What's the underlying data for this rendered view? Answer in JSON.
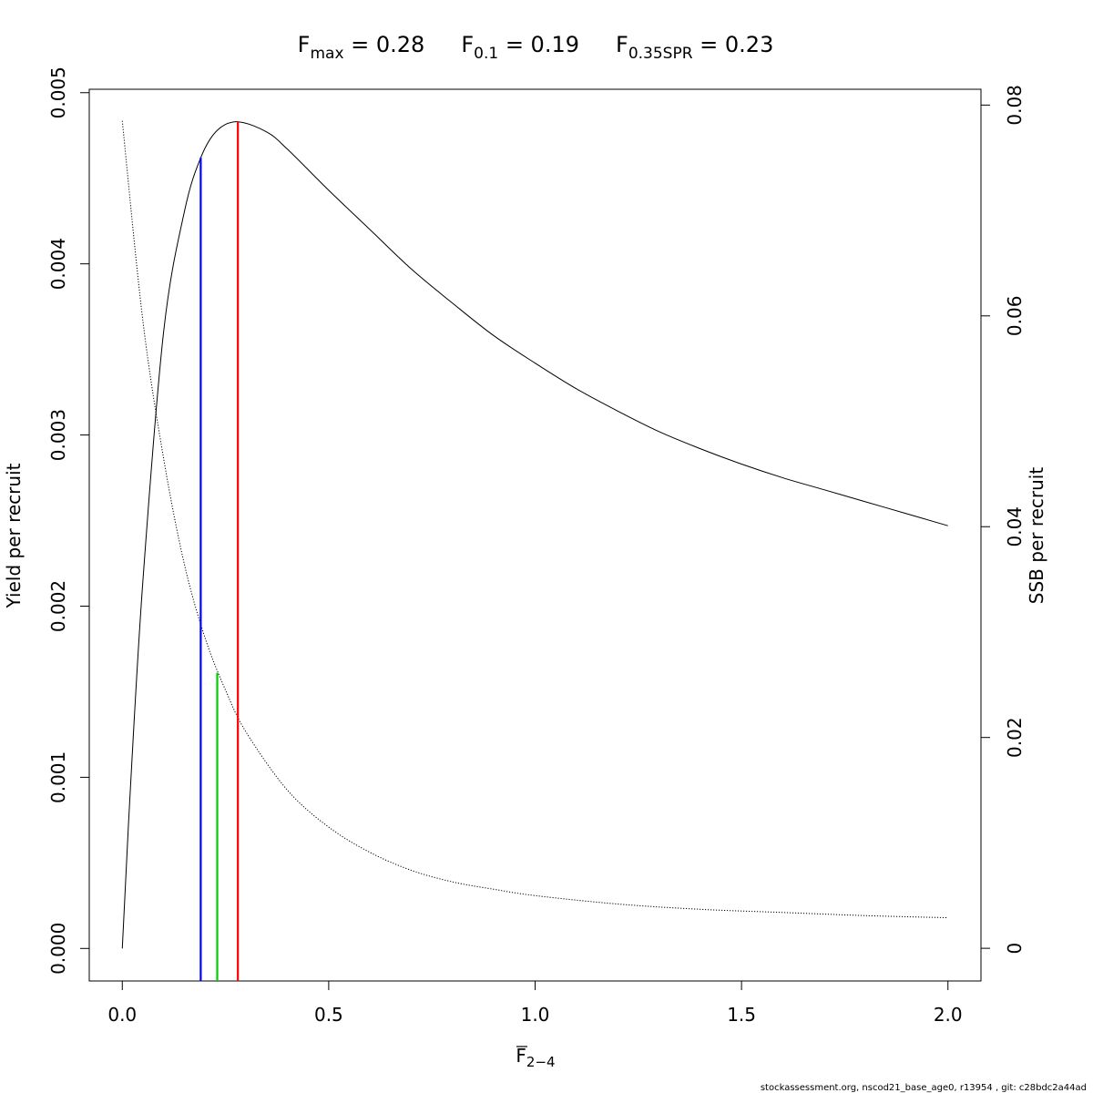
{
  "title": {
    "fmax_symbol": "F",
    "fmax_sub": "max",
    "fmax_value": " = 0.28",
    "f01_symbol": "F",
    "f01_sub": "0.1",
    "f01_value": " = 0.19",
    "fspr_symbol": "F",
    "fspr_sub": "0.35SPR",
    "fspr_value": " = 0.23"
  },
  "footer": "stockassessment.org, nscod21_base_age0, r13954 , git: c28bdc2a44ad",
  "chart_data": {
    "type": "line",
    "xlabel": {
      "symbol": "F",
      "sub": "2−4"
    },
    "ylabel_left": "Yield per recruit",
    "ylabel_right": "SSB per recruit",
    "xlim": [
      -0.08,
      2.08
    ],
    "xticks": [
      "0.0",
      "0.5",
      "1.0",
      "1.5",
      "2.0"
    ],
    "ylim_left": [
      -0.00019,
      0.00502
    ],
    "yticks_left": [
      "0.000",
      "0.001",
      "0.002",
      "0.003",
      "0.004",
      "0.005"
    ],
    "ylim_right": [
      -0.0031,
      0.0815
    ],
    "yticks_right": [
      "0",
      "0.02",
      "0.04",
      "0.06",
      "0.08"
    ],
    "grid": false,
    "series": [
      {
        "axis": "left",
        "style": "solid",
        "color": "#000000",
        "x": [
          0,
          0.02,
          0.05,
          0.1,
          0.15,
          0.19,
          0.23,
          0.28,
          0.35,
          0.4,
          0.5,
          0.6,
          0.7,
          0.8,
          0.9,
          1.0,
          1.1,
          1.2,
          1.3,
          1.4,
          1.5,
          1.6,
          1.7,
          1.8,
          1.9,
          2.0
        ],
        "y": [
          0,
          0.00095,
          0.00215,
          0.0036,
          0.0043,
          0.00462,
          0.00478,
          0.00483,
          0.00477,
          0.00467,
          0.00443,
          0.0042,
          0.00397,
          0.00377,
          0.00358,
          0.00342,
          0.00327,
          0.00314,
          0.00302,
          0.00292,
          0.00283,
          0.00275,
          0.00268,
          0.00261,
          0.00254,
          0.00247
        ]
      },
      {
        "axis": "right",
        "style": "dotted",
        "color": "#000000",
        "x": [
          0,
          0.05,
          0.1,
          0.15,
          0.2,
          0.25,
          0.3,
          0.4,
          0.5,
          0.6,
          0.7,
          0.8,
          0.9,
          1.0,
          1.2,
          1.4,
          1.6,
          1.8,
          2.0
        ],
        "y": [
          0.0785,
          0.0595,
          0.0465,
          0.0365,
          0.0295,
          0.0245,
          0.0205,
          0.015,
          0.0115,
          0.0091,
          0.0074,
          0.0063,
          0.0056,
          0.005,
          0.0042,
          0.0037,
          0.0034,
          0.0031,
          0.0029
        ]
      }
    ],
    "reference_lines": [
      {
        "name": "F0.1",
        "x": 0.19,
        "y_top": 0.00462,
        "color": "#0000ff"
      },
      {
        "name": "F0.35SPR",
        "x": 0.23,
        "y_top": 0.00161,
        "color": "#00cc00"
      },
      {
        "name": "Fmax",
        "x": 0.28,
        "y_top": 0.00483,
        "color": "#ff0000"
      }
    ]
  }
}
